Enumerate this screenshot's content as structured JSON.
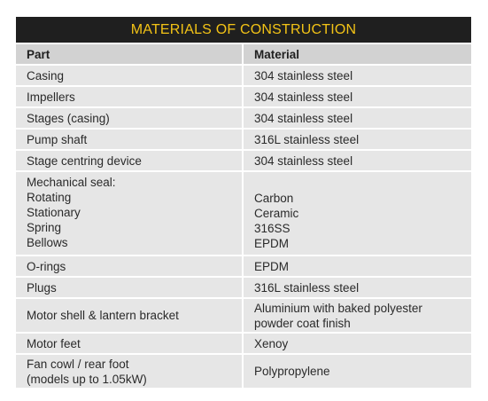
{
  "title": "MATERIALS OF CONSTRUCTION",
  "columns": {
    "part": "Part",
    "material": "Material"
  },
  "rows": [
    {
      "part": "Casing",
      "material": "304 stainless steel"
    },
    {
      "part": "Impellers",
      "material": "304 stainless steel"
    },
    {
      "part": "Stages (casing)",
      "material": "304 stainless steel"
    },
    {
      "part": "Pump shaft",
      "material": "316L stainless steel"
    },
    {
      "part": "Stage centring device",
      "material": "304 stainless steel"
    },
    {
      "part_lines": [
        "Mechanical seal:",
        "Rotating",
        "Stationary",
        "Spring",
        "Bellows"
      ],
      "material_lines": [
        "Carbon",
        "Ceramic",
        "316SS",
        "EPDM"
      ]
    },
    {
      "part": "O-rings",
      "material": "EPDM"
    },
    {
      "part": "Plugs",
      "material": "316L stainless steel"
    },
    {
      "part": "Motor shell & lantern bracket",
      "material_lines": [
        "Aluminium with baked polyester",
        "powder coat finish"
      ]
    },
    {
      "part": "Motor feet",
      "material": "Xenoy"
    },
    {
      "part_lines": [
        "Fan cowl / rear foot",
        "(models up to 1.05kW)"
      ],
      "material": "Polypropylene"
    }
  ]
}
